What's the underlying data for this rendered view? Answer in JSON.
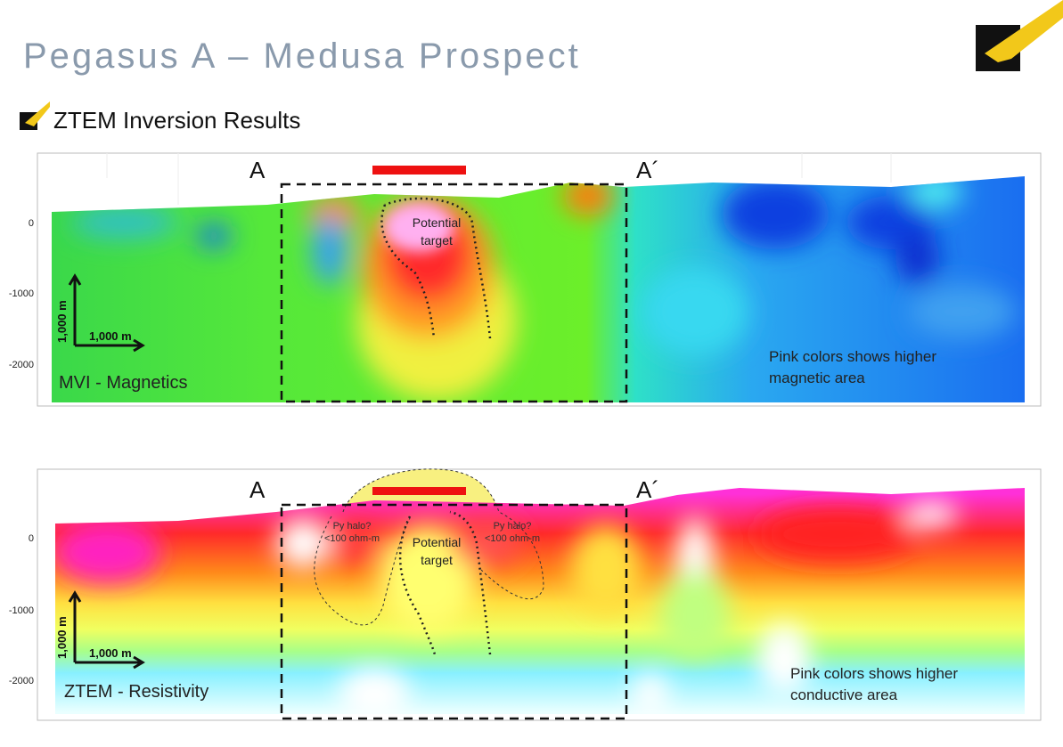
{
  "header": {
    "title": "Pegasus A – Medusa Prospect"
  },
  "section": {
    "title": "ZTEM Inversion Results"
  },
  "panels": [
    {
      "start_label": "A",
      "end_label": "A´",
      "depth_ticks": [
        "0",
        "-1000",
        "-2000"
      ],
      "vertical_scale": "1,000 m",
      "horizontal_scale": "1,000 m",
      "target_label": [
        "Potential",
        "target"
      ],
      "method": "MVI - Magnetics",
      "note": [
        "Pink colors shows higher",
        "magnetic area"
      ]
    },
    {
      "start_label": "A",
      "end_label": "A´",
      "depth_ticks": [
        "0",
        "-1000",
        "-2000"
      ],
      "vertical_scale": "1,000 m",
      "horizontal_scale": "1,000 m",
      "target_label": [
        "Potential",
        "target"
      ],
      "method": "ZTEM - Resistivity",
      "note": [
        "Pink colors shows higher",
        "conductive area"
      ],
      "halo_labels": [
        [
          "Py halo?",
          "<100 ohm-m"
        ],
        [
          "Py halo?",
          "<100 ohm-m"
        ]
      ]
    }
  ]
}
